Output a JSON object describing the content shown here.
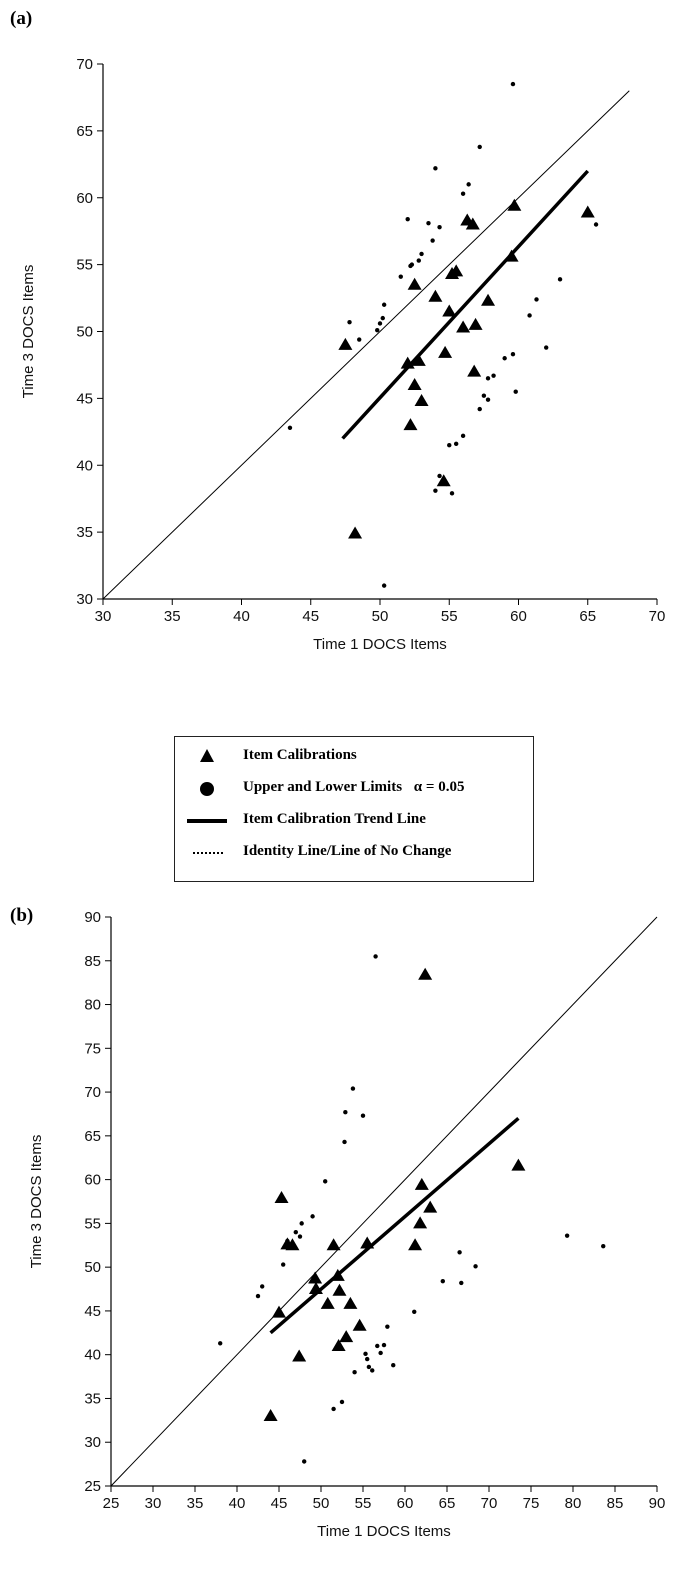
{
  "legend": {
    "items": [
      {
        "label": "Item Calibrations",
        "symbol": "triangle-icon"
      },
      {
        "label": "Upper and Lower Limits",
        "alpha_text": "α = 0.05",
        "symbol": "circle-icon"
      },
      {
        "label": "Item Calibration Trend Line",
        "symbol": "thick-line-icon"
      },
      {
        "label": "Identity Line/Line of No Change",
        "symbol": "dotted-line-icon"
      }
    ]
  },
  "chart_data": [
    {
      "panel": "(a)",
      "type": "scatter",
      "xlabel": "Time 1 DOCS Items",
      "ylabel": "Time 3 DOCS Items",
      "xlim": [
        30,
        70
      ],
      "ylim": [
        30,
        70
      ],
      "xticks": [
        30,
        35,
        40,
        45,
        50,
        55,
        60,
        65,
        70
      ],
      "yticks": [
        30,
        35,
        40,
        45,
        50,
        55,
        60,
        65,
        70
      ],
      "grid": false,
      "series": [
        {
          "name": "Item Calibrations",
          "marker": "triangle",
          "points": [
            [
              47.5,
              49
            ],
            [
              48.2,
              34.9
            ],
            [
              52,
              47.6
            ],
            [
              52.2,
              43
            ],
            [
              52.5,
              46
            ],
            [
              52.5,
              53.5
            ],
            [
              52.8,
              47.8
            ],
            [
              53,
              44.8
            ],
            [
              54,
              52.6
            ],
            [
              54.7,
              48.4
            ],
            [
              54.6,
              38.8
            ],
            [
              55,
              51.5
            ],
            [
              55.2,
              54.3
            ],
            [
              55.5,
              54.5
            ],
            [
              56,
              50.3
            ],
            [
              56.3,
              58.3
            ],
            [
              56.7,
              58
            ],
            [
              56.8,
              47
            ],
            [
              56.9,
              50.5
            ],
            [
              57.8,
              52.3
            ],
            [
              59.5,
              55.6
            ],
            [
              59.7,
              59.4
            ],
            [
              65,
              58.9
            ]
          ]
        },
        {
          "name": "Upper and Lower Limits",
          "marker": "dot",
          "points": [
            [
              43.5,
              42.8
            ],
            [
              50.3,
              31
            ],
            [
              47.8,
              50.7
            ],
            [
              48.5,
              49.4
            ],
            [
              49.8,
              50.1
            ],
            [
              50,
              50.6
            ],
            [
              50.2,
              51
            ],
            [
              50.3,
              52
            ],
            [
              51.5,
              54.1
            ],
            [
              52.2,
              54.9
            ],
            [
              52.3,
              55
            ],
            [
              52,
              58.4
            ],
            [
              52.8,
              55.3
            ],
            [
              53,
              55.8
            ],
            [
              53.5,
              58.1
            ],
            [
              53.8,
              56.8
            ],
            [
              54,
              62.2
            ],
            [
              54.3,
              57.8
            ],
            [
              54,
              38.1
            ],
            [
              54.3,
              39.2
            ],
            [
              54.8,
              38.6
            ],
            [
              55,
              41.5
            ],
            [
              55.2,
              37.9
            ],
            [
              55.5,
              41.6
            ],
            [
              56,
              42.2
            ],
            [
              56,
              60.3
            ],
            [
              56.4,
              61
            ],
            [
              57.2,
              63.8
            ],
            [
              57.2,
              44.2
            ],
            [
              57.5,
              45.2
            ],
            [
              57.8,
              44.9
            ],
            [
              57.8,
              46.5
            ],
            [
              58.2,
              46.7
            ],
            [
              59,
              48
            ],
            [
              59.6,
              48.3
            ],
            [
              59.8,
              45.5
            ],
            [
              60.8,
              51.2
            ],
            [
              61.3,
              52.4
            ],
            [
              62,
              48.8
            ],
            [
              63,
              53.9
            ],
            [
              59.6,
              68.5
            ],
            [
              65.6,
              58
            ]
          ]
        },
        {
          "name": "Item Calibration Trend Line",
          "style": "thick-line",
          "points": [
            [
              47.3,
              42
            ],
            [
              65,
              62
            ]
          ]
        },
        {
          "name": "Identity Line/Line of No Change",
          "style": "thin-line",
          "points": [
            [
              30,
              30
            ],
            [
              68,
              68
            ]
          ]
        }
      ]
    },
    {
      "panel": "(b)",
      "type": "scatter",
      "xlabel": "Time 1 DOCS Items",
      "ylabel": "Time 3 DOCS Items",
      "xlim": [
        25,
        90
      ],
      "ylim": [
        25,
        90
      ],
      "xticks": [
        25,
        30,
        35,
        40,
        45,
        50,
        55,
        60,
        65,
        70,
        75,
        80,
        85,
        90
      ],
      "yticks": [
        25,
        30,
        35,
        40,
        45,
        50,
        55,
        60,
        65,
        70,
        75,
        80,
        85,
        90
      ],
      "grid": false,
      "series": [
        {
          "name": "Item Calibrations",
          "marker": "triangle",
          "points": [
            [
              44,
              33
            ],
            [
              45,
              44.8
            ],
            [
              45.3,
              57.9
            ],
            [
              46,
              52.6
            ],
            [
              46.6,
              52.5
            ],
            [
              47.4,
              39.8
            ],
            [
              49.3,
              48.7
            ],
            [
              49.4,
              47.5
            ],
            [
              50.8,
              45.8
            ],
            [
              51.5,
              52.5
            ],
            [
              52.1,
              41
            ],
            [
              52,
              49
            ],
            [
              52.2,
              47.3
            ],
            [
              53,
              42
            ],
            [
              53.5,
              45.8
            ],
            [
              54.6,
              43.3
            ],
            [
              55.5,
              52.7
            ],
            [
              61.2,
              52.5
            ],
            [
              61.8,
              55
            ],
            [
              62,
              59.4
            ],
            [
              62.4,
              83.4
            ],
            [
              63,
              56.8
            ],
            [
              73.5,
              61.6
            ]
          ]
        },
        {
          "name": "Upper and Lower Limits",
          "marker": "dot",
          "points": [
            [
              38,
              41.3
            ],
            [
              42.5,
              46.7
            ],
            [
              43,
              47.8
            ],
            [
              45.5,
              50.3
            ],
            [
              46,
              53
            ],
            [
              47,
              54
            ],
            [
              47.5,
              53.5
            ],
            [
              47.7,
              55
            ],
            [
              48,
              27.8
            ],
            [
              49,
              55.8
            ],
            [
              50.5,
              59.8
            ],
            [
              51.5,
              33.8
            ],
            [
              52.5,
              34.6
            ],
            [
              52.8,
              64.3
            ],
            [
              52.9,
              67.7
            ],
            [
              53.8,
              70.4
            ],
            [
              54,
              38
            ],
            [
              55,
              67.3
            ],
            [
              55.3,
              40.1
            ],
            [
              55.5,
              39.5
            ],
            [
              55.7,
              38.6
            ],
            [
              56.1,
              38.2
            ],
            [
              56.5,
              85.5
            ],
            [
              56.7,
              41
            ],
            [
              57.1,
              40.2
            ],
            [
              57.5,
              41.1
            ],
            [
              57.9,
              43.2
            ],
            [
              58.6,
              38.8
            ],
            [
              61.1,
              44.9
            ],
            [
              64.5,
              48.4
            ],
            [
              66.5,
              51.7
            ],
            [
              66.7,
              48.2
            ],
            [
              68.4,
              50.1
            ],
            [
              79.3,
              53.6
            ],
            [
              83.6,
              52.4
            ]
          ]
        },
        {
          "name": "Item Calibration Trend Line",
          "style": "thick-line",
          "points": [
            [
              44,
              42.5
            ],
            [
              73.5,
              67
            ]
          ]
        },
        {
          "name": "Identity Line/Line of No Change",
          "style": "thin-line",
          "points": [
            [
              25,
              25
            ],
            [
              90,
              90
            ]
          ]
        }
      ]
    }
  ]
}
